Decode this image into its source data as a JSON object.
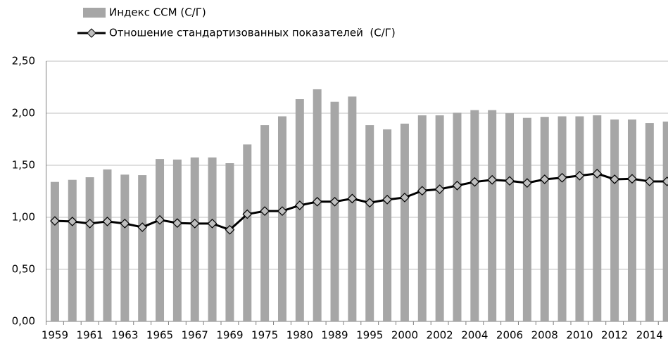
{
  "chart_data": {
    "type": "bar",
    "categories": [
      "1959",
      null,
      "1961",
      null,
      "1963",
      null,
      "1965",
      null,
      "1967",
      null,
      "1969",
      null,
      "1975",
      null,
      "1980",
      null,
      "1989",
      null,
      "1995",
      null,
      "2000",
      null,
      "2002",
      null,
      "2004",
      null,
      "2006",
      null,
      "2008",
      null,
      "2010",
      null,
      "2012",
      null,
      "2014",
      null
    ],
    "series": [
      {
        "name": "Индекс ССМ (С/Г)",
        "type": "bar",
        "color": "#a6a6a6",
        "values": [
          1.34,
          1.36,
          1.385,
          1.46,
          1.41,
          1.405,
          1.56,
          1.555,
          1.575,
          1.575,
          1.52,
          1.7,
          1.885,
          1.97,
          2.135,
          2.23,
          2.11,
          2.16,
          1.885,
          1.845,
          1.9,
          1.98,
          1.98,
          2.005,
          2.03,
          2.03,
          2.0,
          1.955,
          1.965,
          1.97,
          1.97,
          1.98,
          1.94,
          1.94,
          1.905,
          1.92
        ]
      },
      {
        "name": "Отношение стандартизованных показателей  (С/Г)",
        "type": "line",
        "color": "#000000",
        "marker_color": "#bfbfbf",
        "values": [
          0.965,
          0.96,
          0.94,
          0.96,
          0.94,
          0.905,
          0.975,
          0.945,
          0.94,
          0.94,
          0.88,
          1.03,
          1.06,
          1.06,
          1.115,
          1.15,
          1.15,
          1.18,
          1.14,
          1.17,
          1.19,
          1.255,
          1.27,
          1.305,
          1.34,
          1.36,
          1.35,
          1.33,
          1.365,
          1.38,
          1.4,
          1.42,
          1.365,
          1.37,
          1.345,
          1.345
        ]
      }
    ],
    "ylim": [
      0,
      2.5
    ],
    "yticks": [
      {
        "value": 0,
        "label": "0,00"
      },
      {
        "value": 0.5,
        "label": "0,50"
      },
      {
        "value": 1,
        "label": "1,00"
      },
      {
        "value": 1.5,
        "label": "1,50"
      },
      {
        "value": 2,
        "label": "2,00"
      },
      {
        "value": 2.5,
        "label": "2,50"
      }
    ],
    "grid": true,
    "legend": "top"
  }
}
